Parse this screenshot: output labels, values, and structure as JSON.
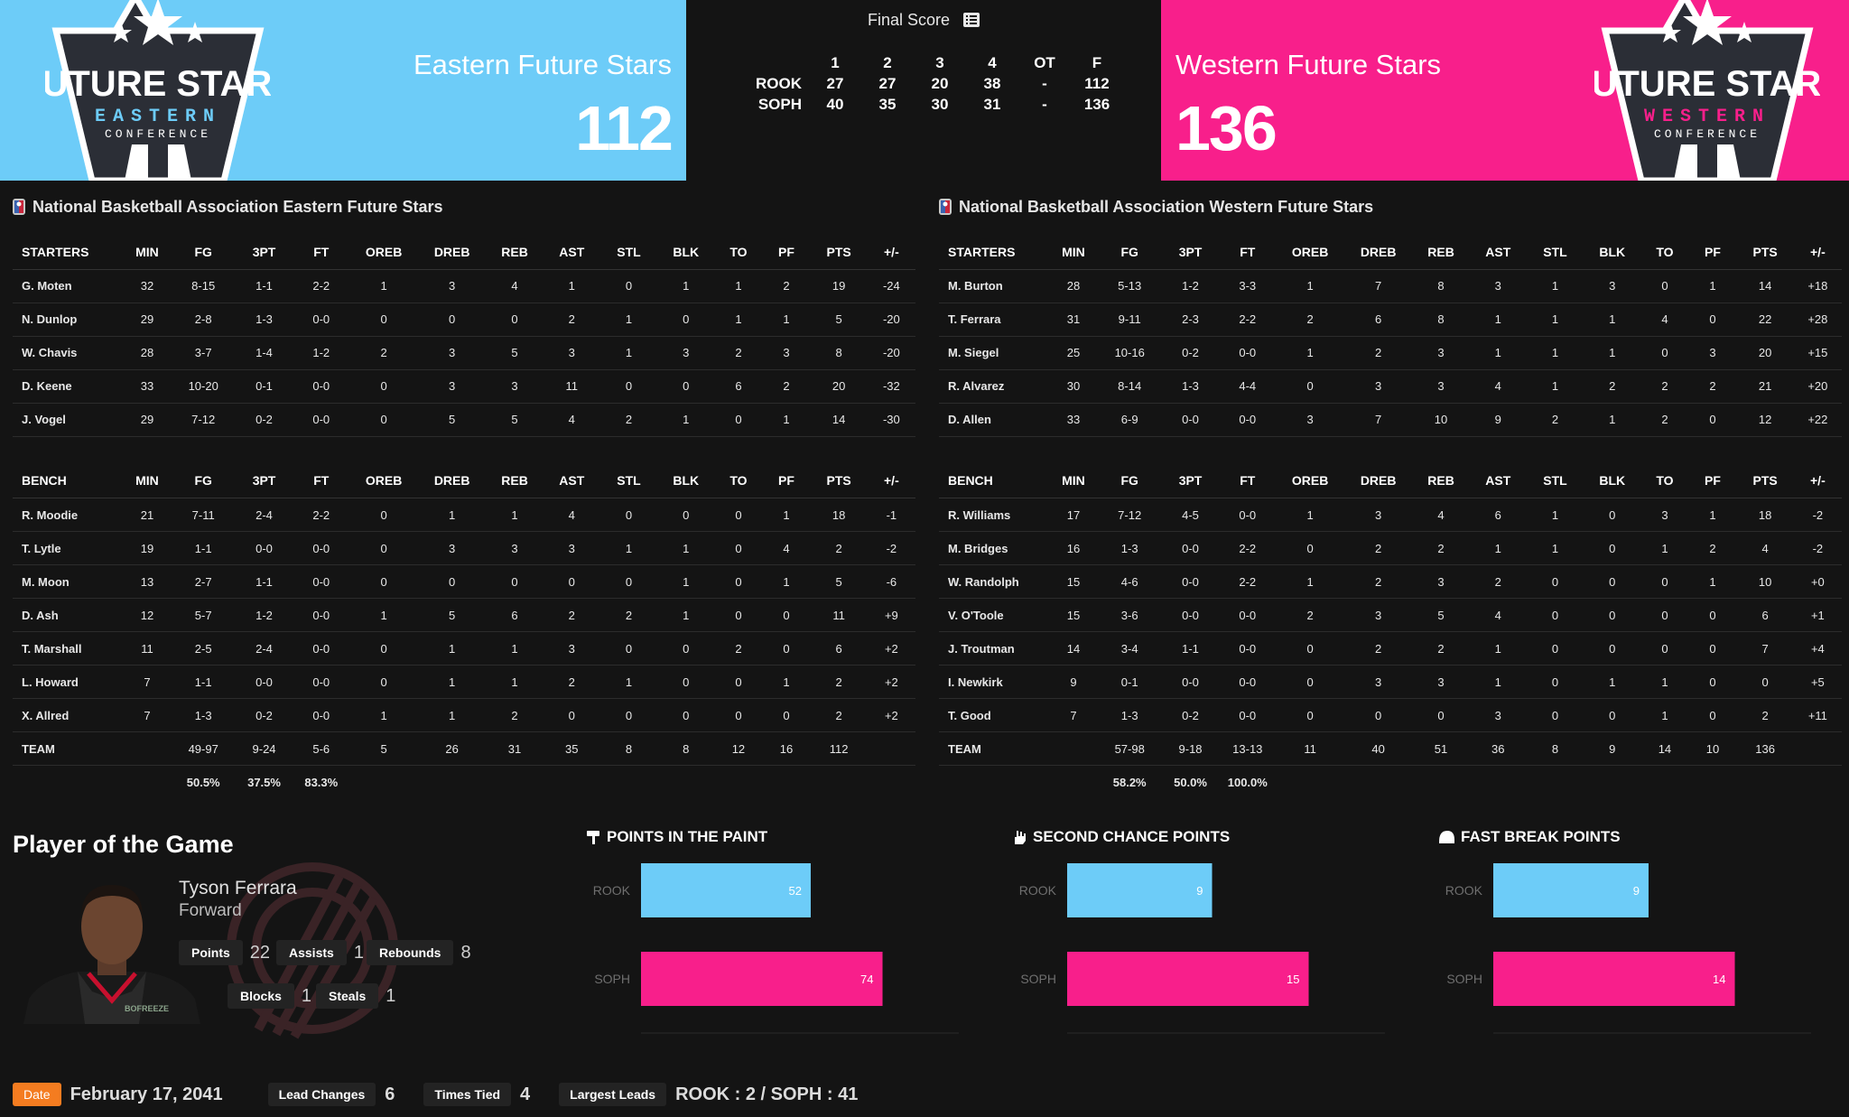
{
  "header": {
    "final_title": "Final Score",
    "east": {
      "name": "Eastern Future Stars",
      "score": "112",
      "color": "#6dccf8",
      "logo_lines": [
        "FUTURE STARS",
        "EASTERN",
        "CONFERENCE"
      ]
    },
    "west": {
      "name": "Western Future Stars",
      "score": "136",
      "color": "#f81f8b",
      "logo_lines": [
        "FUTURE STARS",
        "WESTERN",
        "CONFERENCE"
      ]
    }
  },
  "linescore": {
    "headers": [
      "",
      "1",
      "2",
      "3",
      "4",
      "OT",
      "F"
    ],
    "rows": [
      [
        "ROOK",
        "27",
        "27",
        "20",
        "38",
        "-",
        "112"
      ],
      [
        "SOPH",
        "40",
        "35",
        "30",
        "31",
        "-",
        "136"
      ]
    ]
  },
  "east": {
    "title": "National Basketball Association Eastern Future Stars",
    "starters_header": [
      "STARTERS",
      "MIN",
      "FG",
      "3PT",
      "FT",
      "OREB",
      "DREB",
      "REB",
      "AST",
      "STL",
      "BLK",
      "TO",
      "PF",
      "PTS",
      "+/-"
    ],
    "starters": [
      [
        "G. Moten",
        "32",
        "8-15",
        "1-1",
        "2-2",
        "1",
        "3",
        "4",
        "1",
        "0",
        "1",
        "1",
        "2",
        "19",
        "-24"
      ],
      [
        "N. Dunlop",
        "29",
        "2-8",
        "1-3",
        "0-0",
        "0",
        "0",
        "0",
        "2",
        "1",
        "0",
        "1",
        "1",
        "5",
        "-20"
      ],
      [
        "W. Chavis",
        "28",
        "3-7",
        "1-4",
        "1-2",
        "2",
        "3",
        "5",
        "3",
        "1",
        "3",
        "2",
        "3",
        "8",
        "-20"
      ],
      [
        "D. Keene",
        "33",
        "10-20",
        "0-1",
        "0-0",
        "0",
        "3",
        "3",
        "11",
        "0",
        "0",
        "6",
        "2",
        "20",
        "-32"
      ],
      [
        "J. Vogel",
        "29",
        "7-12",
        "0-2",
        "0-0",
        "0",
        "5",
        "5",
        "4",
        "2",
        "1",
        "0",
        "1",
        "14",
        "-30"
      ]
    ],
    "bench_header": [
      "BENCH",
      "MIN",
      "FG",
      "3PT",
      "FT",
      "OREB",
      "DREB",
      "REB",
      "AST",
      "STL",
      "BLK",
      "TO",
      "PF",
      "PTS",
      "+/-"
    ],
    "bench": [
      [
        "R. Moodie",
        "21",
        "7-11",
        "2-4",
        "2-2",
        "0",
        "1",
        "1",
        "4",
        "0",
        "0",
        "0",
        "1",
        "18",
        "-1"
      ],
      [
        "T. Lytle",
        "19",
        "1-1",
        "0-0",
        "0-0",
        "0",
        "3",
        "3",
        "3",
        "1",
        "1",
        "0",
        "4",
        "2",
        "-2"
      ],
      [
        "M. Moon",
        "13",
        "2-7",
        "1-1",
        "0-0",
        "0",
        "0",
        "0",
        "0",
        "0",
        "1",
        "0",
        "1",
        "5",
        "-6"
      ],
      [
        "D. Ash",
        "12",
        "5-7",
        "1-2",
        "0-0",
        "1",
        "5",
        "6",
        "2",
        "2",
        "1",
        "0",
        "0",
        "11",
        "+9"
      ],
      [
        "T. Marshall",
        "11",
        "2-5",
        "2-4",
        "0-0",
        "0",
        "1",
        "1",
        "3",
        "0",
        "0",
        "2",
        "0",
        "6",
        "+2"
      ],
      [
        "L. Howard",
        "7",
        "1-1",
        "0-0",
        "0-0",
        "0",
        "1",
        "1",
        "2",
        "1",
        "0",
        "0",
        "1",
        "2",
        "+2"
      ],
      [
        "X. Allred",
        "7",
        "1-3",
        "0-2",
        "0-0",
        "1",
        "1",
        "2",
        "0",
        "0",
        "0",
        "0",
        "0",
        "2",
        "+2"
      ],
      [
        "TEAM",
        "",
        "49-97",
        "9-24",
        "5-6",
        "5",
        "26",
        "31",
        "35",
        "8",
        "8",
        "12",
        "16",
        "112",
        ""
      ]
    ],
    "pct": [
      "",
      "",
      "50.5%",
      "37.5%",
      "83.3%",
      "",
      "",
      "",
      "",
      "",
      "",
      "",
      "",
      "",
      ""
    ]
  },
  "west": {
    "title": "National Basketball Association Western Future Stars",
    "starters_header": [
      "STARTERS",
      "MIN",
      "FG",
      "3PT",
      "FT",
      "OREB",
      "DREB",
      "REB",
      "AST",
      "STL",
      "BLK",
      "TO",
      "PF",
      "PTS",
      "+/-"
    ],
    "starters": [
      [
        "M. Burton",
        "28",
        "5-13",
        "1-2",
        "3-3",
        "1",
        "7",
        "8",
        "3",
        "1",
        "3",
        "0",
        "1",
        "14",
        "+18"
      ],
      [
        "T. Ferrara",
        "31",
        "9-11",
        "2-3",
        "2-2",
        "2",
        "6",
        "8",
        "1",
        "1",
        "1",
        "4",
        "0",
        "22",
        "+28"
      ],
      [
        "M. Siegel",
        "25",
        "10-16",
        "0-2",
        "0-0",
        "1",
        "2",
        "3",
        "1",
        "1",
        "1",
        "0",
        "3",
        "20",
        "+15"
      ],
      [
        "R. Alvarez",
        "30",
        "8-14",
        "1-3",
        "4-4",
        "0",
        "3",
        "3",
        "4",
        "1",
        "2",
        "2",
        "2",
        "21",
        "+20"
      ],
      [
        "D. Allen",
        "33",
        "6-9",
        "0-0",
        "0-0",
        "3",
        "7",
        "10",
        "9",
        "2",
        "1",
        "2",
        "0",
        "12",
        "+22"
      ]
    ],
    "bench_header": [
      "BENCH",
      "MIN",
      "FG",
      "3PT",
      "FT",
      "OREB",
      "DREB",
      "REB",
      "AST",
      "STL",
      "BLK",
      "TO",
      "PF",
      "PTS",
      "+/-"
    ],
    "bench": [
      [
        "R. Williams",
        "17",
        "7-12",
        "4-5",
        "0-0",
        "1",
        "3",
        "4",
        "6",
        "1",
        "0",
        "3",
        "1",
        "18",
        "-2"
      ],
      [
        "M. Bridges",
        "16",
        "1-3",
        "0-0",
        "2-2",
        "0",
        "2",
        "2",
        "1",
        "1",
        "0",
        "1",
        "2",
        "4",
        "-2"
      ],
      [
        "W. Randolph",
        "15",
        "4-6",
        "0-0",
        "2-2",
        "1",
        "2",
        "3",
        "2",
        "0",
        "0",
        "0",
        "1",
        "10",
        "+0"
      ],
      [
        "V. O'Toole",
        "15",
        "3-6",
        "0-0",
        "0-0",
        "2",
        "3",
        "5",
        "4",
        "0",
        "0",
        "0",
        "0",
        "6",
        "+1"
      ],
      [
        "J. Troutman",
        "14",
        "3-4",
        "1-1",
        "0-0",
        "0",
        "2",
        "2",
        "1",
        "0",
        "0",
        "0",
        "0",
        "7",
        "+4"
      ],
      [
        "I. Newkirk",
        "9",
        "0-1",
        "0-0",
        "0-0",
        "0",
        "3",
        "3",
        "1",
        "0",
        "1",
        "1",
        "0",
        "0",
        "+5"
      ],
      [
        "T. Good",
        "7",
        "1-3",
        "0-2",
        "0-0",
        "0",
        "0",
        "0",
        "3",
        "0",
        "0",
        "1",
        "0",
        "2",
        "+11"
      ],
      [
        "TEAM",
        "",
        "57-98",
        "9-18",
        "13-13",
        "11",
        "40",
        "51",
        "36",
        "8",
        "9",
        "14",
        "10",
        "136",
        ""
      ]
    ],
    "pct": [
      "",
      "",
      "58.2%",
      "50.0%",
      "100.0%",
      "",
      "",
      "",
      "",
      "",
      "",
      "",
      "",
      "",
      ""
    ]
  },
  "potg": {
    "title": "Player of the Game",
    "name": "Tyson Ferrara",
    "position": "Forward",
    "jersey_text": "BOFREEZE",
    "stats": [
      {
        "label": "Points",
        "value": "22"
      },
      {
        "label": "Assists",
        "value": "1"
      },
      {
        "label": "Rebounds",
        "value": "8"
      },
      {
        "label": "Blocks",
        "value": "1"
      },
      {
        "label": "Steals",
        "value": "1"
      }
    ]
  },
  "charts": [
    {
      "title": "POINTS IN THE PAINT",
      "icon": "paint-icon"
    },
    {
      "title": "SECOND CHANCE POINTS",
      "icon": "hand-icon"
    },
    {
      "title": "FAST BREAK POINTS",
      "icon": "helmet-icon"
    }
  ],
  "chart_data": [
    {
      "type": "bar",
      "orientation": "horizontal",
      "title": "POINTS IN THE PAINT",
      "categories": [
        "ROOK",
        "SOPH"
      ],
      "values": [
        52,
        74
      ],
      "colors": [
        "#6dccf8",
        "#f81f8b"
      ]
    },
    {
      "type": "bar",
      "orientation": "horizontal",
      "title": "SECOND CHANCE POINTS",
      "categories": [
        "ROOK",
        "SOPH"
      ],
      "values": [
        9,
        15
      ],
      "colors": [
        "#6dccf8",
        "#f81f8b"
      ]
    },
    {
      "type": "bar",
      "orientation": "horizontal",
      "title": "FAST BREAK POINTS",
      "categories": [
        "ROOK",
        "SOPH"
      ],
      "values": [
        9,
        14
      ],
      "colors": [
        "#6dccf8",
        "#f81f8b"
      ]
    }
  ],
  "footer": {
    "date_label": "Date",
    "date": "February 17, 2041",
    "lead_changes_label": "Lead Changes",
    "lead_changes": "6",
    "times_tied_label": "Times Tied",
    "times_tied": "4",
    "largest_leads_label": "Largest Leads",
    "largest_leads": "ROOK : 2 / SOPH : 41",
    "accent": "#f47c20"
  }
}
